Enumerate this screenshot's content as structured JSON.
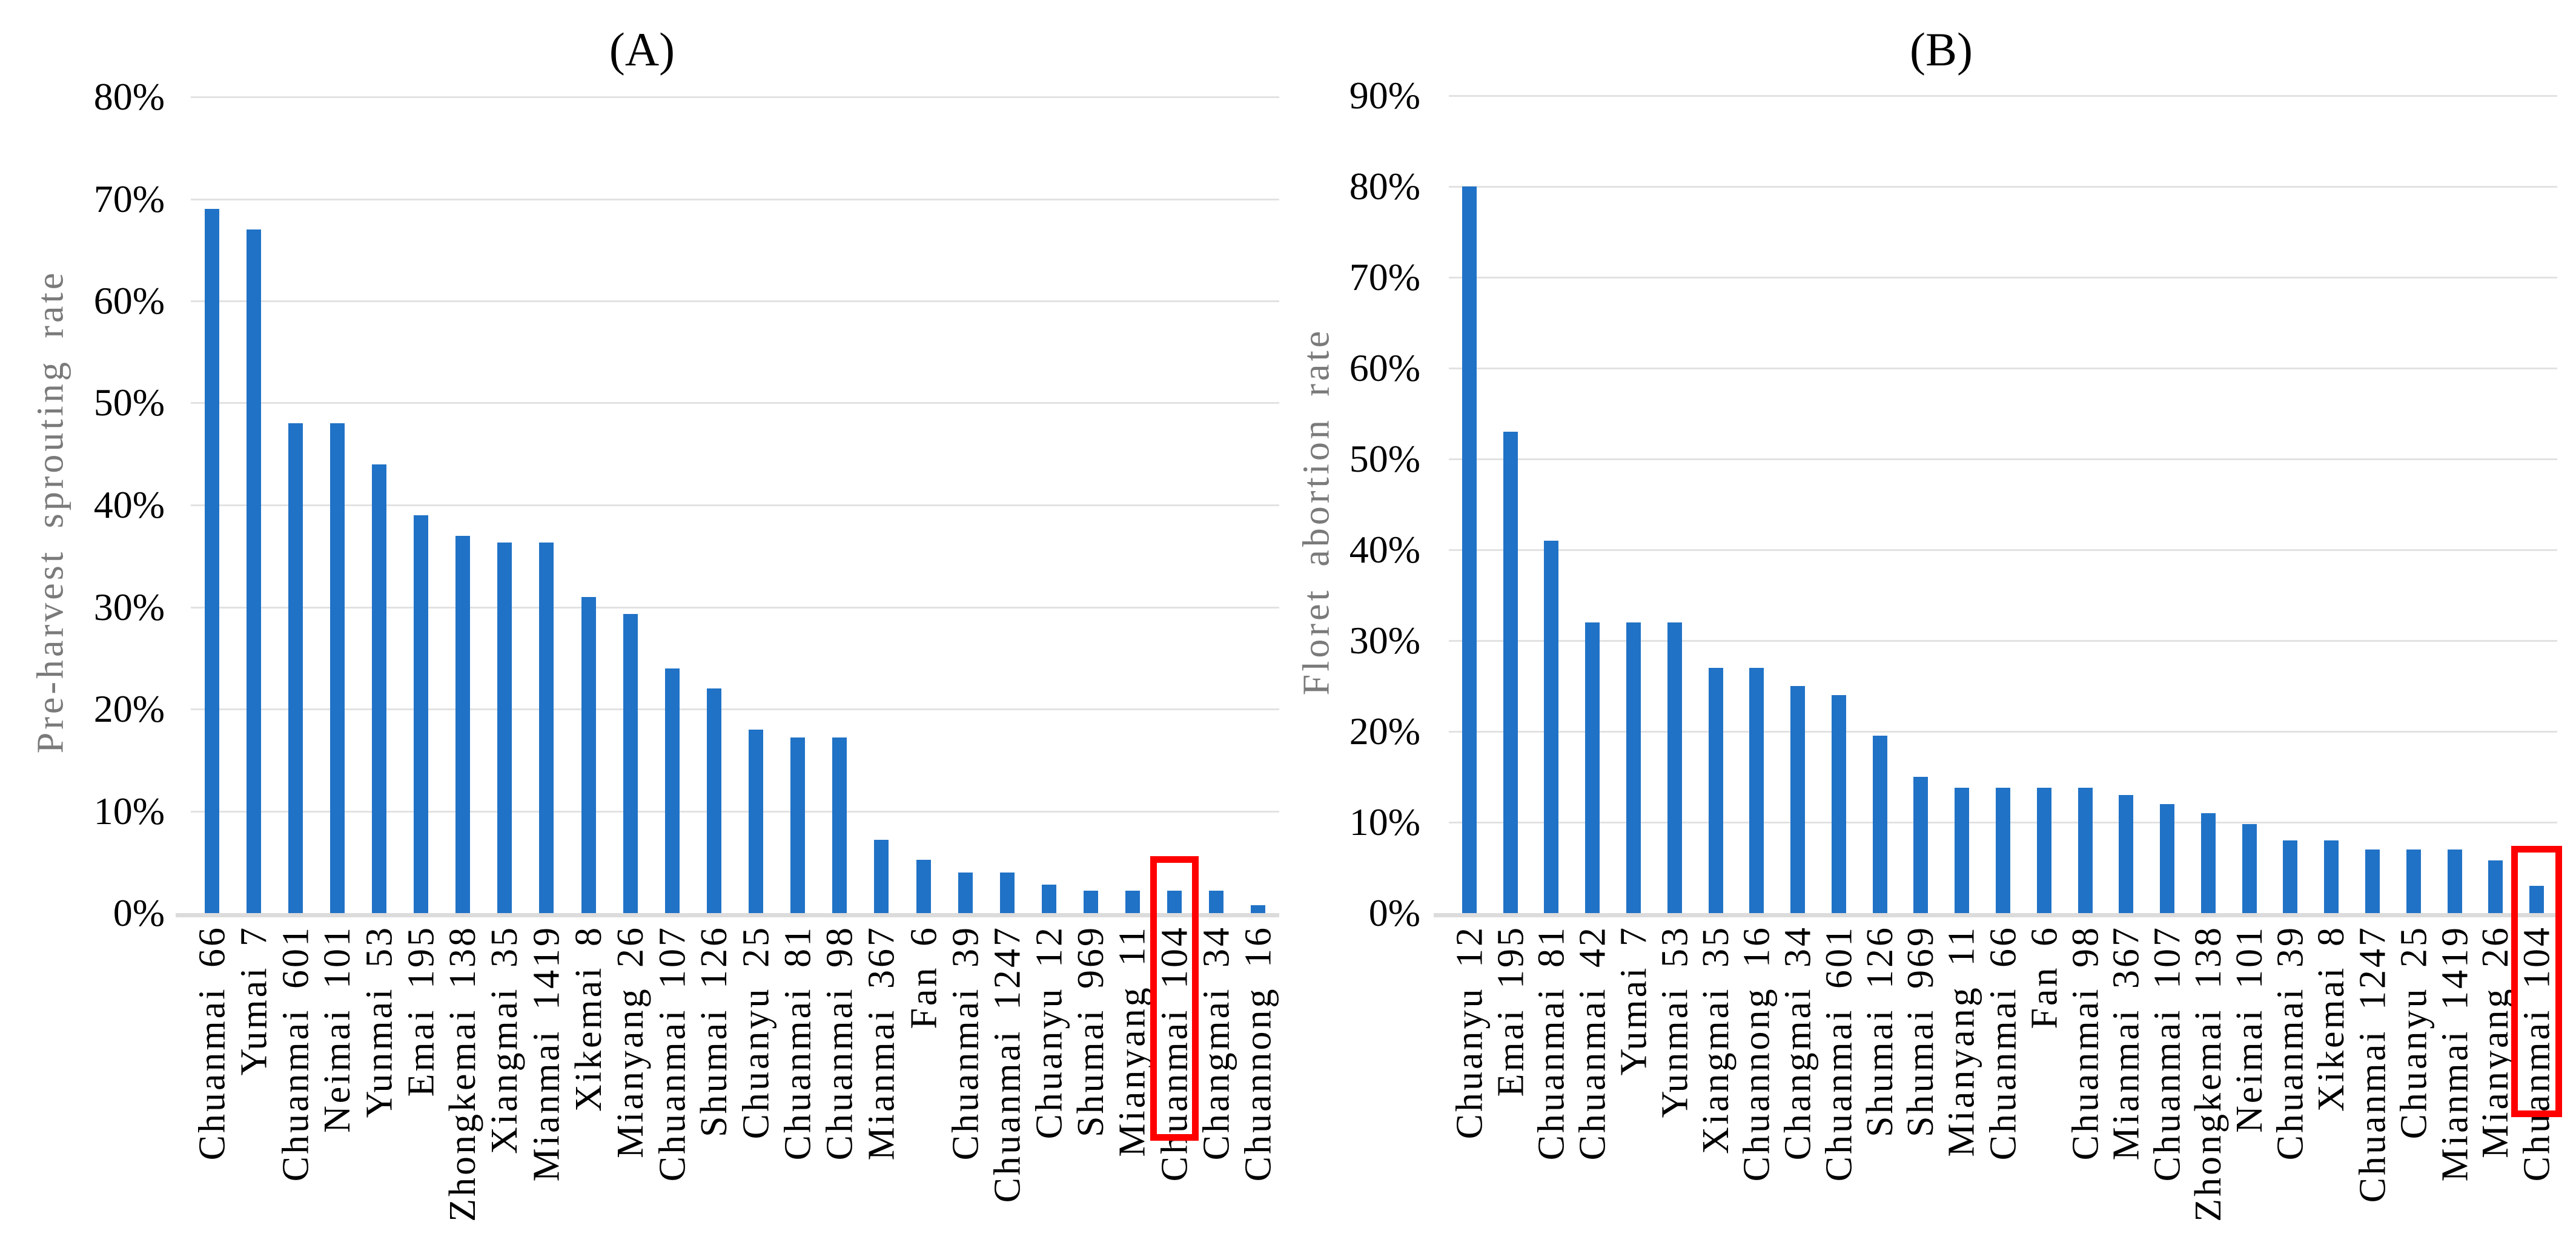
{
  "page": {
    "background": "#FFFFFF"
  },
  "colors": {
    "bar": "#2072C6",
    "gridline": "#E2E2E2",
    "axis_line": "#DCDCDC",
    "highlight_box": "#FF0000",
    "axis_title_text": "#7A7A7A",
    "tick_text": "#000000"
  },
  "chart_data": [
    {
      "type": "bar",
      "panel_label": "(A)",
      "ylabel": "Pre-harvest sprouting rate",
      "y_axis": {
        "min": 0,
        "max": 80,
        "tick_step": 10,
        "tick_labels": [
          "80%",
          "70%",
          "60%",
          "50%",
          "40%",
          "30%",
          "20%",
          "10%",
          "0%"
        ]
      },
      "grid": "on",
      "legend": "none",
      "categories": [
        "Chuanmai 66",
        "Yumai 7",
        "Chuanmai 601",
        "Neimai 101",
        "Yunmai 53",
        "Emai 195",
        "Zhongkemai 138",
        "Xiangmai 35",
        "Mianmai 1419",
        "Xikemai 8",
        "Mianyang 26",
        "Chuanmai 107",
        "Shumai 126",
        "Chuanyu 25",
        "Chuanmai 81",
        "Chuanmai 98",
        "Mianmai 367",
        "Fan 6",
        "Chuanmai 39",
        "Chuanmai 1247",
        "Chuanyu 12",
        "Shumai 969",
        "Mianyang 11",
        "Chuanmai 104",
        "Changmai 34",
        "Chuannong 16"
      ],
      "values": [
        69,
        67,
        48,
        48,
        44,
        39,
        37,
        36.3,
        36.3,
        31,
        29.3,
        24,
        22,
        18,
        17.2,
        17.2,
        7.2,
        5.2,
        4,
        4,
        2.8,
        2.2,
        2.2,
        2.2,
        2.2,
        0.8
      ],
      "highlight": {
        "category": "Chuanmai 104",
        "index": 23
      }
    },
    {
      "type": "bar",
      "panel_label": "(B)",
      "ylabel": "Floret abortion rate",
      "y_axis": {
        "min": 0,
        "max": 90,
        "tick_step": 10,
        "tick_labels": [
          "90%",
          "80%",
          "70%",
          "60%",
          "50%",
          "40%",
          "30%",
          "20%",
          "10%",
          "0%"
        ]
      },
      "grid": "on",
      "legend": "none",
      "categories": [
        "Chuanyu 12",
        "Emai 195",
        "Chuanmai 81",
        "Chuanmai 42",
        "Yumai 7",
        "Yunmai 53",
        "Xiangmai 35",
        "Chuannong 16",
        "Changmai 34",
        "Chuanmai 601",
        "Shumai 126",
        "Shumai 969",
        "Mianyang 11",
        "Chuanmai 66",
        "Fan 6",
        "Chuanmai 98",
        "Mianmai 367",
        "Chuanmai 107",
        "Zhongkemai 138",
        "Neimai 101",
        "Chuanmai 39",
        "Xikemai 8",
        "Chuanmai 1247",
        "Chuanyu 25",
        "Mianmai 1419",
        "Mianyang 26",
        "Chuanmai 104"
      ],
      "values": [
        80,
        53,
        41,
        32,
        32,
        32,
        27,
        27,
        25,
        24,
        19.5,
        15,
        13.8,
        13.8,
        13.8,
        13.8,
        13,
        12,
        11,
        9.8,
        8,
        8,
        7,
        7,
        7,
        5.8,
        3
      ],
      "highlight": {
        "category": "Chuanmai 104",
        "index": 26
      }
    }
  ]
}
